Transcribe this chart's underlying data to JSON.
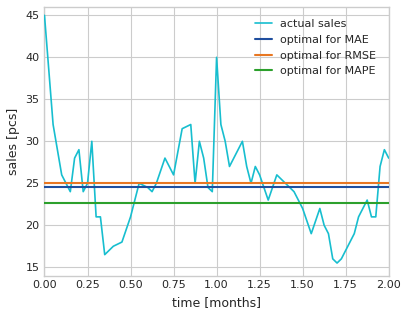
{
  "title": "",
  "xlabel": "time [months]",
  "ylabel": "sales [pcs]",
  "xlim": [
    0.0,
    2.0
  ],
  "ylim": [
    14,
    46
  ],
  "mae_value": 24.5,
  "rmse_value": 25.0,
  "mape_value": 22.7,
  "actual_color": "#17becf",
  "mae_color": "#1f4e9e",
  "rmse_color": "#e87722",
  "mape_color": "#2ca02c",
  "legend_labels": [
    "actual sales",
    "optimal for MAE",
    "optimal for RMSE",
    "optimal for MAPE"
  ],
  "actual_sales_x": [
    0.0,
    0.05,
    0.1,
    0.125,
    0.15,
    0.175,
    0.2,
    0.225,
    0.25,
    0.275,
    0.3,
    0.325,
    0.35,
    0.375,
    0.4,
    0.45,
    0.5,
    0.55,
    0.6,
    0.625,
    0.65,
    0.7,
    0.75,
    0.8,
    0.85,
    0.875,
    0.9,
    0.925,
    0.95,
    0.975,
    1.0,
    1.025,
    1.05,
    1.075,
    1.1,
    1.125,
    1.15,
    1.175,
    1.2,
    1.225,
    1.25,
    1.3,
    1.35,
    1.4,
    1.45,
    1.5,
    1.55,
    1.6,
    1.625,
    1.65,
    1.675,
    1.7,
    1.725,
    1.75,
    1.775,
    1.8,
    1.825,
    1.85,
    1.875,
    1.9,
    1.925,
    1.95,
    1.975,
    2.0
  ],
  "actual_sales_y": [
    45,
    32,
    26,
    25,
    24,
    28,
    29,
    24,
    25,
    30,
    21,
    21,
    16.5,
    17,
    17.5,
    18,
    21,
    25,
    24.5,
    24,
    25,
    28,
    26,
    31.5,
    32,
    25,
    30,
    28,
    24.5,
    24,
    40,
    32,
    30,
    27,
    28,
    29,
    30,
    27,
    25,
    27,
    26,
    23,
    26,
    25,
    24,
    22,
    19,
    22,
    20,
    19,
    16,
    15.5,
    16,
    17,
    18,
    19,
    21,
    22,
    23,
    21,
    21,
    27,
    29,
    28
  ],
  "xticks": [
    0.0,
    0.25,
    0.5,
    0.75,
    1.0,
    1.25,
    1.5,
    1.75,
    2.0
  ],
  "yticks": [
    15,
    20,
    25,
    30,
    35,
    40,
    45
  ],
  "legend_fontsize": 8,
  "tick_fontsize": 8,
  "label_fontsize": 9
}
